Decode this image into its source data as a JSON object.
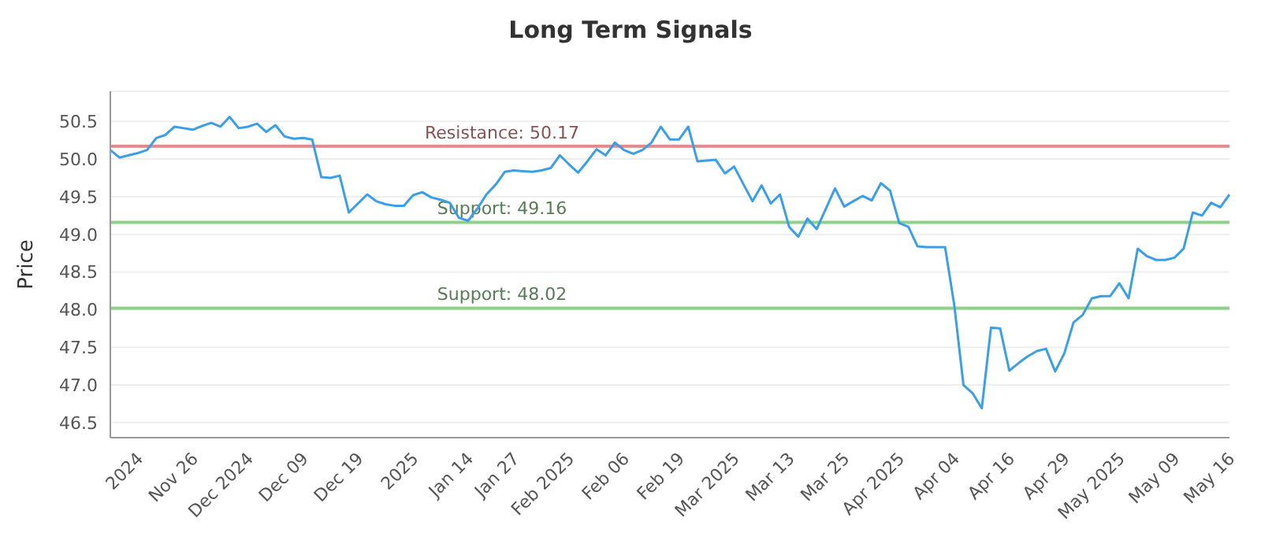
{
  "chart_data": {
    "type": "line",
    "title": "Long Term Signals",
    "ylabel": "Price",
    "categories": [
      null,
      null,
      null,
      "2024",
      null,
      null,
      null,
      null,
      null,
      "Nov 26",
      null,
      null,
      null,
      null,
      null,
      "Dec 2024",
      null,
      null,
      null,
      null,
      null,
      "Dec 09",
      null,
      null,
      null,
      null,
      null,
      "Dec 19",
      null,
      null,
      null,
      null,
      null,
      "2025",
      null,
      null,
      null,
      null,
      null,
      "Jan 14",
      null,
      null,
      null,
      null,
      "Jan 27",
      null,
      null,
      null,
      null,
      null,
      "Feb 2025",
      null,
      null,
      null,
      null,
      null,
      "Feb 06",
      null,
      null,
      null,
      null,
      null,
      "Feb 19",
      null,
      null,
      null,
      null,
      null,
      "Mar 2025",
      null,
      null,
      null,
      null,
      null,
      "Mar 13",
      null,
      null,
      null,
      null,
      null,
      "Mar 25",
      null,
      null,
      null,
      null,
      null,
      "Apr 2025",
      null,
      null,
      null,
      null,
      null,
      "Apr 04",
      null,
      null,
      null,
      null,
      null,
      "Apr 16",
      null,
      null,
      null,
      null,
      null,
      "Apr 29",
      null,
      null,
      null,
      null,
      null,
      "May 2025",
      null,
      null,
      null,
      null,
      null,
      "May 09",
      null,
      null,
      null,
      null,
      null,
      "May 16"
    ],
    "series": [
      {
        "color": "#3a9fe6",
        "values": [
          50.12,
          50.02,
          50.05,
          50.08,
          50.12,
          50.28,
          50.32,
          50.43,
          50.41,
          50.39,
          50.44,
          50.48,
          50.43,
          50.56,
          50.41,
          50.43,
          50.47,
          50.36,
          50.45,
          50.3,
          50.27,
          50.28,
          50.26,
          49.76,
          49.75,
          49.78,
          49.29,
          49.41,
          49.53,
          49.44,
          49.4,
          49.38,
          49.38,
          49.52,
          49.56,
          49.49,
          49.46,
          49.42,
          49.22,
          49.18,
          49.34,
          49.53,
          49.66,
          49.83,
          49.85,
          49.84,
          49.83,
          49.85,
          49.88,
          50.05,
          49.93,
          49.82,
          49.97,
          50.13,
          50.05,
          50.22,
          50.12,
          50.07,
          50.12,
          50.22,
          50.43,
          50.26,
          50.26,
          50.43,
          49.97,
          49.98,
          49.99,
          49.81,
          49.9,
          49.67,
          49.44,
          49.65,
          49.41,
          49.53,
          49.1,
          48.97,
          49.21,
          49.07,
          49.34,
          49.61,
          49.37,
          49.44,
          49.51,
          49.45,
          49.68,
          49.58,
          49.15,
          49.1,
          48.84,
          48.83,
          48.83,
          48.83,
          48.06,
          47.0,
          46.89,
          46.69,
          47.76,
          47.75,
          47.19,
          47.29,
          47.38,
          47.45,
          47.48,
          47.18,
          47.42,
          47.83,
          47.93,
          48.15,
          48.18,
          48.18,
          48.35,
          48.15,
          48.81,
          48.71,
          48.66,
          48.66,
          48.69,
          48.81,
          49.29,
          49.25,
          49.42,
          49.36,
          49.53
        ]
      }
    ],
    "ylim": [
      46.3,
      50.9
    ],
    "yticks": [
      46.5,
      {
        "value": 47,
        "label": "47.0"
      },
      47.5,
      {
        "value": 48,
        "label": "48.0"
      },
      48.5,
      {
        "value": 49,
        "label": "49.0"
      },
      49.5,
      {
        "value": 50,
        "label": "50.0"
      },
      50.5
    ],
    "ref_lines": [
      {
        "axis": "y",
        "value": 50.17,
        "label": "Resistance: 50.17",
        "color": "#e08a8e"
      },
      {
        "axis": "y",
        "value": 49.16,
        "label": "Support: 49.16",
        "color": "#8fd08a"
      },
      {
        "axis": "y",
        "value": 48.02,
        "label": "Support: 48.02",
        "color": "#8fd08a"
      }
    ],
    "grid": "y",
    "marker": "none",
    "line_style": "solid"
  }
}
